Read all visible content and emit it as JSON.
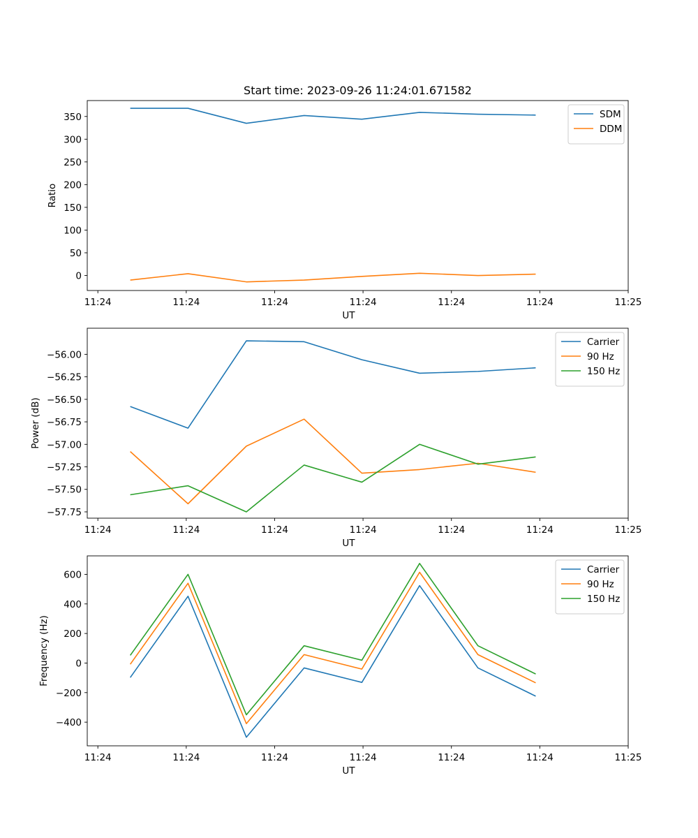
{
  "chart_data": [
    {
      "type": "line",
      "title": "Start time: 2023-09-26 11:24:01.671582",
      "xlabel": "UT",
      "ylabel": "Ratio",
      "xlim": [
        -0.18,
        9.0
      ],
      "ylim": [
        -33,
        385
      ],
      "xticks": [
        0,
        1.5,
        3,
        4.5,
        6,
        7.5,
        9
      ],
      "xtick_labels": [
        "11:24",
        "11:24",
        "11:24",
        "11:24",
        "11:24",
        "11:24",
        "11:25"
      ],
      "yticks": [
        0,
        50,
        100,
        150,
        200,
        250,
        300,
        350
      ],
      "ytick_labels": [
        "0",
        "50",
        "100",
        "150",
        "200",
        "250",
        "300",
        "350"
      ],
      "legend": "top-right",
      "x": [
        0.55,
        1.53,
        2.52,
        3.5,
        4.48,
        5.46,
        6.45,
        7.43
      ],
      "series": [
        {
          "name": "SDM",
          "color": "#1f77b4",
          "values": [
            368,
            368,
            335,
            352,
            344,
            359,
            355,
            353
          ]
        },
        {
          "name": "DDM",
          "color": "#ff7f0e",
          "values": [
            -10,
            4,
            -14,
            -10,
            -2,
            5,
            0,
            3
          ]
        }
      ]
    },
    {
      "type": "line",
      "title": "",
      "xlabel": "UT",
      "ylabel": "Power (dB)",
      "xlim": [
        -0.18,
        9.0
      ],
      "ylim": [
        -57.82,
        -55.71
      ],
      "xticks": [
        0,
        1.5,
        3,
        4.5,
        6,
        7.5,
        9
      ],
      "xtick_labels": [
        "11:24",
        "11:24",
        "11:24",
        "11:24",
        "11:24",
        "11:24",
        "11:25"
      ],
      "yticks": [
        -57.75,
        -57.5,
        -57.25,
        -57.0,
        -56.75,
        -56.5,
        -56.25,
        -56.0
      ],
      "ytick_labels": [
        "−57.75",
        "−57.50",
        "−57.25",
        "−57.00",
        "−56.75",
        "−56.50",
        "−56.25",
        "−56.00"
      ],
      "legend": "top-right",
      "x": [
        0.55,
        1.53,
        2.52,
        3.5,
        4.48,
        5.46,
        6.45,
        7.43
      ],
      "series": [
        {
          "name": "Carrier",
          "color": "#1f77b4",
          "values": [
            -56.58,
            -56.82,
            -55.85,
            -55.86,
            -56.06,
            -56.21,
            -56.19,
            -56.15
          ]
        },
        {
          "name": "90 Hz",
          "color": "#ff7f0e",
          "values": [
            -57.08,
            -57.66,
            -57.02,
            -56.72,
            -57.32,
            -57.28,
            -57.21,
            -57.31
          ]
        },
        {
          "name": "150 Hz",
          "color": "#2ca02c",
          "values": [
            -57.56,
            -57.46,
            -57.75,
            -57.23,
            -57.42,
            -57.0,
            -57.22,
            -57.14
          ]
        }
      ]
    },
    {
      "type": "line",
      "title": "",
      "xlabel": "UT",
      "ylabel": "Frequency (Hz)",
      "xlim": [
        -0.18,
        9.0
      ],
      "ylim": [
        -560,
        725
      ],
      "xticks": [
        0,
        1.5,
        3,
        4.5,
        6,
        7.5,
        9
      ],
      "xtick_labels": [
        "11:24",
        "11:24",
        "11:24",
        "11:24",
        "11:24",
        "11:24",
        "11:25"
      ],
      "yticks": [
        -400,
        -200,
        0,
        200,
        400,
        600
      ],
      "ytick_labels": [
        "−400",
        "−200",
        "0",
        "200",
        "400",
        "600"
      ],
      "legend": "top-right",
      "x": [
        0.55,
        1.53,
        2.52,
        3.5,
        4.48,
        5.46,
        6.45,
        7.43
      ],
      "series": [
        {
          "name": "Carrier",
          "color": "#1f77b4",
          "values": [
            -98,
            452,
            -502,
            -33,
            -131,
            524,
            -33,
            -224
          ]
        },
        {
          "name": "90 Hz",
          "color": "#ff7f0e",
          "values": [
            -8,
            540,
            -410,
            57,
            -41,
            614,
            57,
            -134
          ]
        },
        {
          "name": "150 Hz",
          "color": "#2ca02c",
          "values": [
            52,
            600,
            -350,
            117,
            19,
            674,
            117,
            -74
          ]
        }
      ]
    }
  ]
}
